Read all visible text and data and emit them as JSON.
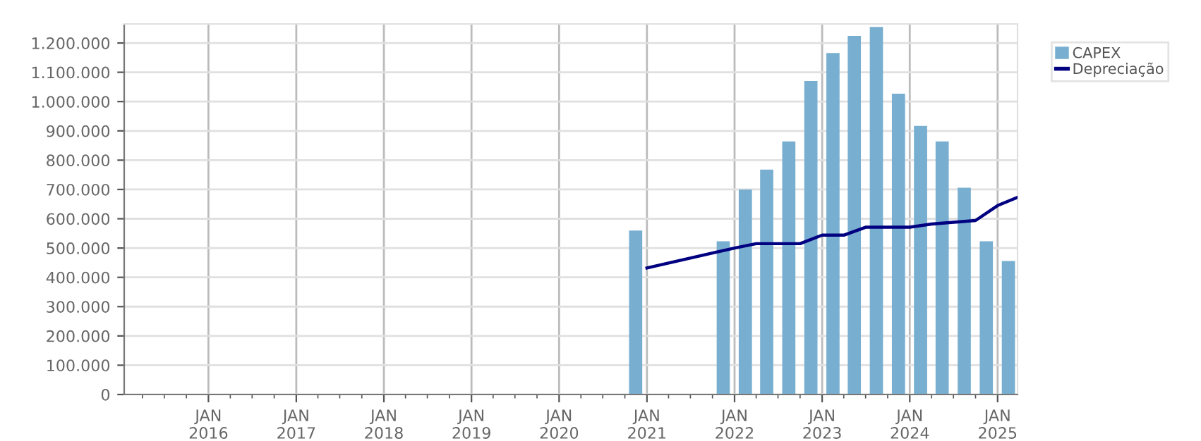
{
  "chart_data": {
    "type": "bar",
    "x": [
      "2020-11-15",
      "2021-11-15",
      "2022-02-15",
      "2022-05-15",
      "2022-08-15",
      "2022-11-15",
      "2023-02-15",
      "2023-05-15",
      "2023-08-15",
      "2023-11-15",
      "2024-02-15",
      "2024-05-15",
      "2024-08-15",
      "2024-11-15",
      "2025-02-15"
    ],
    "series": [
      {
        "name": "CAPEX",
        "color": "#78afd0",
        "values": [
          560000,
          523000,
          700000,
          768000,
          864000,
          1070000,
          1166000,
          1224000,
          1255000,
          1027000,
          917000,
          864000,
          706000,
          523000,
          456000
        ]
      },
      {
        "name": "Depreciação",
        "type": "line",
        "color": "#000080",
        "x": [
          "2021-01-01",
          "2022-01-01",
          "2022-04-01",
          "2022-10-01",
          "2023-01-01",
          "2023-04-01",
          "2023-07-01",
          "2024-01-01",
          "2024-04-01",
          "2024-10-01",
          "2025-01-01",
          "2025-03-25"
        ],
        "values": [
          432000,
          500000,
          515000,
          515000,
          544000,
          544000,
          571000,
          571000,
          582000,
          594000,
          645000,
          673000
        ]
      }
    ],
    "xlim": [
      "2015-01-15",
      "2025-03-25"
    ],
    "xticks": [
      {
        "value": "2015-04-01",
        "label": null
      },
      {
        "value": "2015-07-01",
        "label": null
      },
      {
        "value": "2015-10-01",
        "label": null
      },
      {
        "value": "2016-01-01",
        "label": "JAN\n2016"
      },
      {
        "value": "2016-04-01",
        "label": null
      },
      {
        "value": "2016-07-01",
        "label": null
      },
      {
        "value": "2016-10-01",
        "label": null
      },
      {
        "value": "2017-01-01",
        "label": "JAN\n2017"
      },
      {
        "value": "2017-04-01",
        "label": null
      },
      {
        "value": "2017-07-01",
        "label": null
      },
      {
        "value": "2017-10-01",
        "label": null
      },
      {
        "value": "2018-01-01",
        "label": "JAN\n2018"
      },
      {
        "value": "2018-04-01",
        "label": null
      },
      {
        "value": "2018-07-01",
        "label": null
      },
      {
        "value": "2018-10-01",
        "label": null
      },
      {
        "value": "2019-01-01",
        "label": "JAN\n2019"
      },
      {
        "value": "2019-04-01",
        "label": null
      },
      {
        "value": "2019-07-01",
        "label": null
      },
      {
        "value": "2019-10-01",
        "label": null
      },
      {
        "value": "2020-01-01",
        "label": "JAN\n2020"
      },
      {
        "value": "2020-04-01",
        "label": null
      },
      {
        "value": "2020-07-01",
        "label": null
      },
      {
        "value": "2020-10-01",
        "label": null
      },
      {
        "value": "2021-01-01",
        "label": "JAN\n2021"
      },
      {
        "value": "2021-04-01",
        "label": null
      },
      {
        "value": "2021-07-01",
        "label": null
      },
      {
        "value": "2021-10-01",
        "label": null
      },
      {
        "value": "2022-01-01",
        "label": "JAN\n2022"
      },
      {
        "value": "2022-04-01",
        "label": null
      },
      {
        "value": "2022-07-01",
        "label": null
      },
      {
        "value": "2022-10-01",
        "label": null
      },
      {
        "value": "2023-01-01",
        "label": "JAN\n2023"
      },
      {
        "value": "2023-04-01",
        "label": null
      },
      {
        "value": "2023-07-01",
        "label": null
      },
      {
        "value": "2023-10-01",
        "label": null
      },
      {
        "value": "2024-01-01",
        "label": "JAN\n2024"
      },
      {
        "value": "2024-04-01",
        "label": null
      },
      {
        "value": "2024-07-01",
        "label": null
      },
      {
        "value": "2024-10-01",
        "label": null
      },
      {
        "value": "2025-01-01",
        "label": "JAN\n2025"
      }
    ],
    "ylim": [
      0,
      1265000
    ],
    "yticks": [
      0,
      {
        "value": 100000,
        "label": "100.000"
      },
      {
        "value": 200000,
        "label": "200.000"
      },
      {
        "value": 300000,
        "label": "300.000"
      },
      {
        "value": 400000,
        "label": "400.000"
      },
      {
        "value": 500000,
        "label": "500.000"
      },
      {
        "value": 600000,
        "label": "600.000"
      },
      {
        "value": 700000,
        "label": "700.000"
      },
      {
        "value": 800000,
        "label": "800.000"
      },
      {
        "value": 900000,
        "label": "900.000"
      },
      {
        "value": 1000000,
        "label": "1.000.000"
      },
      {
        "value": 1100000,
        "label": "1.100.000"
      },
      {
        "value": 1200000,
        "label": "1.200.000"
      }
    ],
    "grid": true,
    "legend": "top right"
  }
}
